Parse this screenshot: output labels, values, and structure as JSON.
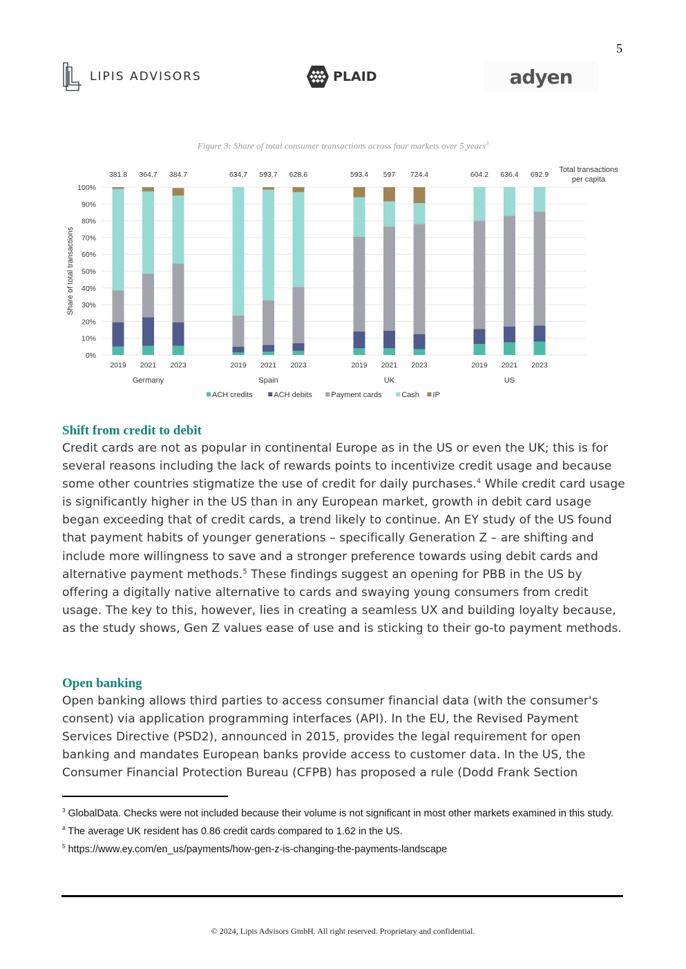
{
  "page_number": "5",
  "logos": {
    "lipis": "LIPIS ADVISORS",
    "plaid": "PLAID",
    "adyen": "adyen"
  },
  "figure": {
    "caption": "Figure 3: Share of total consumer transactions across four markets over 5 years",
    "caption_ref": "3"
  },
  "chart_data": {
    "type": "bar",
    "stacked": true,
    "ylabel": "Share of total transactions",
    "ylim": [
      0,
      100
    ],
    "yticks": [
      "0%",
      "10%",
      "20%",
      "30%",
      "40%",
      "50%",
      "60%",
      "70%",
      "80%",
      "90%",
      "100%"
    ],
    "grid": true,
    "legend_position": "bottom",
    "totals_label": "Total transactions per capita",
    "groups": [
      {
        "name": "Germany",
        "years": [
          "2019",
          "2021",
          "2023"
        ],
        "totals": [
          "381.8",
          "364.7",
          "384.7"
        ]
      },
      {
        "name": "Spain",
        "years": [
          "2019",
          "2021",
          "2023"
        ],
        "totals": [
          "634.7",
          "593.7",
          "628.6"
        ]
      },
      {
        "name": "UK",
        "years": [
          "2019",
          "2021",
          "2023"
        ],
        "totals": [
          "593.4",
          "597",
          "724.4"
        ]
      },
      {
        "name": "US",
        "years": [
          "2019",
          "2021",
          "2023"
        ],
        "totals": [
          "604.2",
          "636.4",
          "692.9"
        ]
      }
    ],
    "series": [
      {
        "name": "ACH credits",
        "color": "#4dbba8",
        "values": [
          5,
          5.5,
          5.5,
          1.5,
          2,
          2.5,
          4,
          4,
          3.5,
          6.5,
          7.5,
          8
        ]
      },
      {
        "name": "ACH debits",
        "color": "#4f5b8a",
        "values": [
          14.5,
          17,
          14,
          3.5,
          4,
          4.5,
          10,
          10.5,
          9,
          9,
          9.5,
          9.5
        ]
      },
      {
        "name": "Payment cards",
        "color": "#a3a3ab",
        "values": [
          19,
          26,
          35,
          18.5,
          26.5,
          33.5,
          56.5,
          62,
          65.5,
          64.5,
          66,
          68
        ]
      },
      {
        "name": "Cash",
        "color": "#98dad4",
        "values": [
          60.5,
          49,
          40.5,
          76.5,
          66,
          56.5,
          23.5,
          15,
          12.5,
          20,
          17,
          14.5
        ]
      },
      {
        "name": "IP",
        "color": "#a08552",
        "values": [
          1,
          2.5,
          4.5,
          0,
          1.5,
          3,
          6,
          8.5,
          9.5,
          0,
          0,
          0
        ]
      }
    ]
  },
  "sections": [
    {
      "heading": "Shift from credit to debit",
      "body": [
        "Credit cards are not as popular in continental Europe as in the US or even the UK; this is for several reasons including the lack of rewards points to incentivize credit usage and because some other countries stigmatize the use of credit for daily purchases.",
        "4",
        " While credit card usage is significantly higher in the US than in any European market, growth in debit card usage began exceeding that of credit cards, a trend likely to continue. An EY study of the US found that payment habits of younger generations – specifically Generation Z – are shifting and include more willingness to save and a stronger preference towards using debit cards and alternative payment methods.",
        "5",
        " These findings suggest an opening for PBB in the US by offering a digitally native alternative to cards and swaying young consumers from credit usage. The key to this, however, lies in creating a seamless UX and building loyalty because, as the study shows, Gen Z values ease of use and is sticking to their go-to payment methods."
      ]
    },
    {
      "heading": "Open banking",
      "body": [
        "Open banking allows third parties to access consumer financial data (with the consumer's consent) via application programming interfaces (API). In the EU, the Revised Payment Services Directive (PSD2), announced in 2015, provides the legal requirement for open banking and mandates European banks provide access to customer data. In the US, the Consumer Financial Protection Bureau (CFPB) has proposed a rule (Dodd Frank Section"
      ]
    }
  ],
  "footnotes": [
    {
      "ref": "3",
      "text": " GlobalData. Checks were not included because their volume is not significant in most other markets examined in this study."
    },
    {
      "ref": "4",
      "text": " The average UK resident has 0.86 credit cards compared to 1.62 in the US."
    },
    {
      "ref": "5",
      "text": " https://www.ey.com/en_us/payments/how-gen-z-is-changing-the-payments-landscape"
    }
  ],
  "footer": {
    "copyright": "© 2024, Lipis Advisors GmbH. All right reserved. Proprietary and confidential."
  }
}
